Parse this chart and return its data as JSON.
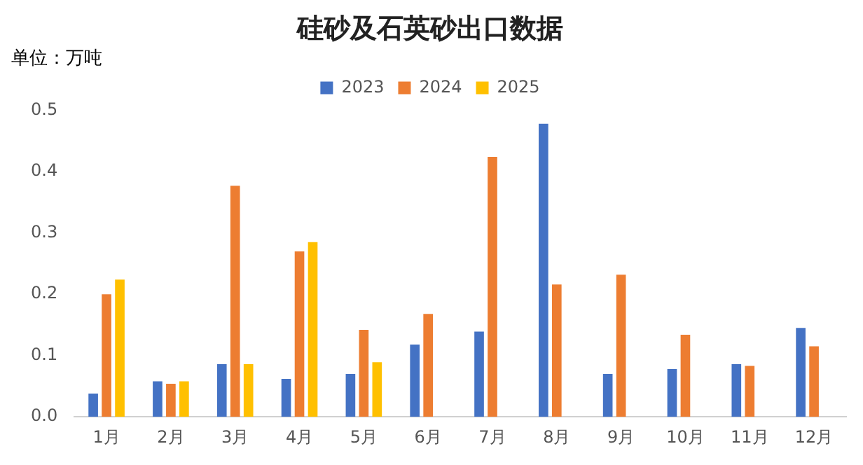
{
  "chart_data": {
    "type": "bar",
    "title": "硅砂及石英砂出口数据",
    "ylabel": "单位：万吨",
    "categories": [
      "1月",
      "2月",
      "3月",
      "4月",
      "5月",
      "6月",
      "7月",
      "8月",
      "9月",
      "10月",
      "11月",
      "12月"
    ],
    "series": [
      {
        "name": "2023",
        "color": "#4472c4",
        "values": [
          0.038,
          0.058,
          0.086,
          0.062,
          0.07,
          0.118,
          0.139,
          0.478,
          0.07,
          0.078,
          0.086,
          0.145
        ]
      },
      {
        "name": "2024",
        "color": "#ed7d31",
        "values": [
          0.2,
          0.054,
          0.377,
          0.27,
          0.142,
          0.168,
          0.424,
          0.216,
          0.232,
          0.134,
          0.083,
          0.115
        ]
      },
      {
        "name": "2025",
        "color": "#ffc000",
        "values": [
          0.224,
          0.058,
          0.086,
          0.285,
          0.089,
          null,
          null,
          null,
          null,
          null,
          null,
          null
        ]
      }
    ],
    "ylim": [
      0,
      0.5
    ],
    "yticks": [
      {
        "value": 0,
        "label": "0.0"
      },
      0.1,
      0.2,
      0.3,
      0.4,
      0.5
    ],
    "grid": false,
    "legend": "top"
  }
}
